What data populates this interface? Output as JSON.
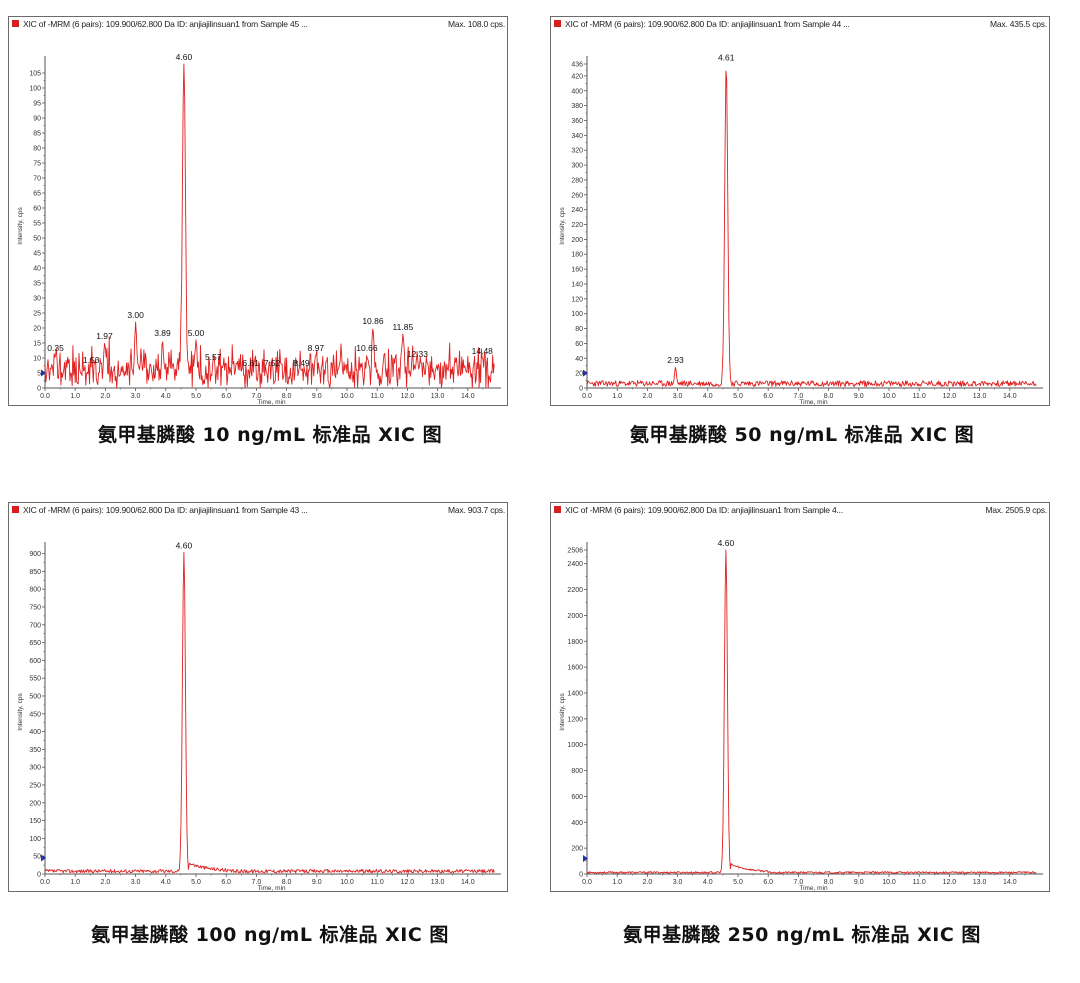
{
  "colors": {
    "trace": "#e02020",
    "axis": "#555555",
    "marker": "#2233aa",
    "swatch": "#d62020"
  },
  "chart_data": [
    {
      "type": "line",
      "header": "XIC of -MRM (6 pairs): 109.900/62.800 Da ID: anjiajilinsuan1 from Sample 45 ...",
      "max_label": "Max. 108.0 cps.",
      "xlabel": "Time, min",
      "ylabel": "Intensity, cps",
      "xlim": [
        0,
        15
      ],
      "ylim": [
        0,
        108
      ],
      "xticks": [
        0,
        1,
        2,
        3,
        4,
        5,
        6,
        7,
        8,
        9,
        10,
        11,
        12,
        13,
        14
      ],
      "yticks": [
        0,
        5,
        10,
        15,
        20,
        25,
        30,
        35,
        40,
        45,
        50,
        55,
        60,
        65,
        70,
        75,
        80,
        85,
        90,
        95,
        100,
        105
      ],
      "y_marker": 5,
      "peaks": [
        {
          "x": 0.35,
          "y": 11,
          "label": "0.35"
        },
        {
          "x": 1.53,
          "y": 7,
          "label": "1.53"
        },
        {
          "x": 1.97,
          "y": 15,
          "label": "1.97"
        },
        {
          "x": 3.0,
          "y": 22,
          "label": "3.00"
        },
        {
          "x": 3.89,
          "y": 16,
          "label": "3.89"
        },
        {
          "x": 4.6,
          "y": 108,
          "label": "4.60"
        },
        {
          "x": 5.0,
          "y": 16,
          "label": "5.00"
        },
        {
          "x": 5.57,
          "y": 8,
          "label": "5.57"
        },
        {
          "x": 6.81,
          "y": 6,
          "label": "6.81"
        },
        {
          "x": 7.52,
          "y": 6,
          "label": "7.52"
        },
        {
          "x": 8.49,
          "y": 6,
          "label": "8.49"
        },
        {
          "x": 8.97,
          "y": 11,
          "label": "8.97"
        },
        {
          "x": 10.66,
          "y": 11,
          "label": "10.66"
        },
        {
          "x": 10.86,
          "y": 20,
          "label": "10.86"
        },
        {
          "x": 11.85,
          "y": 18,
          "label": "11.85"
        },
        {
          "x": 12.33,
          "y": 9,
          "label": "12.33"
        },
        {
          "x": 14.48,
          "y": 10,
          "label": "14.48"
        }
      ],
      "noise_level": 4,
      "noise_amp": 4.5,
      "seed": 11
    },
    {
      "type": "line",
      "header": "XIC of -MRM (6 pairs): 109.900/62.800 Da ID: anjiajilinsuan1 from Sample 44 ...",
      "max_label": "Max. 435.5 cps.",
      "xlabel": "Time, min",
      "ylabel": "Intensity, cps",
      "xlim": [
        0,
        15
      ],
      "ylim": [
        0,
        436
      ],
      "xticks": [
        0,
        1,
        2,
        3,
        4,
        5,
        6,
        7,
        8,
        9,
        10,
        11,
        12,
        13,
        14
      ],
      "yticks": [
        0,
        20,
        40,
        60,
        80,
        100,
        120,
        140,
        160,
        180,
        200,
        220,
        240,
        260,
        280,
        300,
        320,
        340,
        360,
        380,
        400,
        420,
        436
      ],
      "y_marker": 20,
      "peaks": [
        {
          "x": 2.93,
          "y": 28,
          "label": "2.93"
        },
        {
          "x": 4.61,
          "y": 435,
          "label": "4.61"
        }
      ],
      "noise_level": 6,
      "noise_amp": 4,
      "seed": 23
    },
    {
      "type": "line",
      "header": "XIC of -MRM (6 pairs): 109.900/62.800 Da ID: anjiajilinsuan1 from Sample 43 ...",
      "max_label": "Max. 903.7 cps.",
      "xlabel": "Time, min",
      "ylabel": "Intensity, cps",
      "xlim": [
        0,
        15
      ],
      "ylim": [
        0,
        910
      ],
      "xticks": [
        0,
        1,
        2,
        3,
        4,
        5,
        6,
        7,
        8,
        9,
        10,
        11,
        12,
        13,
        14
      ],
      "yticks": [
        0,
        50,
        100,
        150,
        200,
        250,
        300,
        350,
        400,
        450,
        500,
        550,
        600,
        650,
        700,
        750,
        800,
        850,
        900
      ],
      "y_marker": 45,
      "peaks": [
        {
          "x": 4.6,
          "y": 903,
          "label": "4.60"
        }
      ],
      "noise_level": 8,
      "noise_amp": 5,
      "seed": 37
    },
    {
      "type": "line",
      "header": "XIC of -MRM (6 pairs): 109.900/62.800 Da ID: anjiajilinsuan1 from Sample 4...",
      "max_label": "Max. 2505.9 cps.",
      "xlabel": "Time, min",
      "ylabel": "Intensity, cps",
      "xlim": [
        0,
        15
      ],
      "ylim": [
        0,
        2506
      ],
      "xticks": [
        0,
        1,
        2,
        3,
        4,
        5,
        6,
        7,
        8,
        9,
        10,
        11,
        12,
        13,
        14
      ],
      "yticks": [
        0,
        200,
        400,
        600,
        800,
        1000,
        1200,
        1400,
        1600,
        1800,
        2000,
        2200,
        2400,
        2506
      ],
      "y_marker": 120,
      "peaks": [
        {
          "x": 4.6,
          "y": 2505,
          "label": "4.60"
        }
      ],
      "noise_level": 12,
      "noise_amp": 7,
      "seed": 53
    }
  ],
  "captions": [
    "氨甲基膦酸 10 ng/mL 标准品 XIC 图",
    "氨甲基膦酸 50 ng/mL 标准品 XIC 图",
    "氨甲基膦酸 100 ng/mL 标准品 XIC 图",
    "氨甲基膦酸 250 ng/mL 标准品 XIC 图"
  ]
}
